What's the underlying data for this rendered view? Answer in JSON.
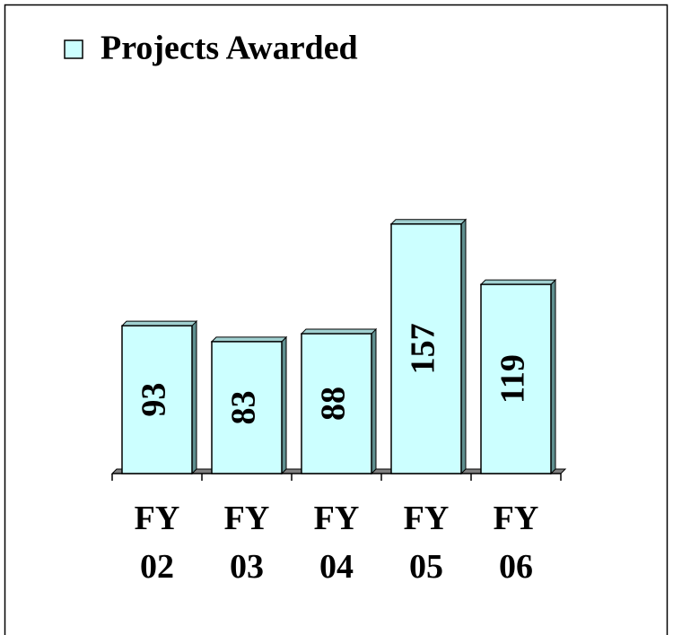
{
  "chart_data": {
    "type": "bar",
    "categories": [
      "FY 02",
      "FY 03",
      "FY 04",
      "FY 05",
      "FY 06"
    ],
    "series": [
      {
        "name": "Projects Awarded",
        "color": "#ccffff",
        "values": [
          93,
          83,
          88,
          157,
          119
        ]
      }
    ],
    "ylim": [
      0,
      180
    ],
    "legend": "top-left"
  }
}
